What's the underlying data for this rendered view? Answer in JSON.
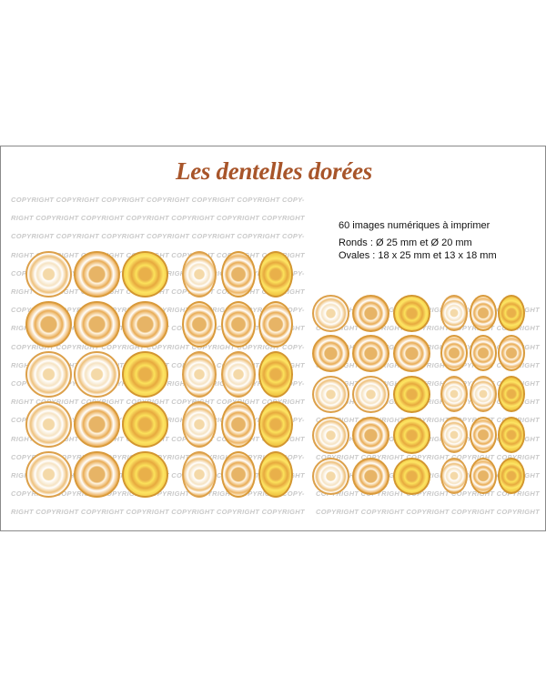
{
  "title": "Les dentelles dorées",
  "watermark": {
    "line_a": "COPYRIGHT COPYRIGHT COPYRIGHT COPYRIGHT COPYRIGHT COPYRIGHT COPY-",
    "line_b": "RIGHT COPYRIGHT COPYRIGHT COPYRIGHT COPYRIGHT COPYRIGHT COPYRIGHT",
    "line_right": "COPYRIGHT COPYRIGHT COPYRIGHT COPYRIGHT COPYRIGHT"
  },
  "info": {
    "count": "60 images numériques à imprimer",
    "rounds": "Ronds : Ø 25 mm et Ø 20 mm",
    "ovals": "Ovales : 18 x 25 mm et 13 x 18 mm"
  },
  "grid_styles": [
    [
      "c-white",
      "c-lace",
      "c-gold"
    ],
    [
      "c-lace",
      "c-lace",
      "c-lace"
    ],
    [
      "c-white",
      "c-white",
      "c-gold"
    ],
    [
      "c-white",
      "c-lace",
      "c-gold"
    ],
    [
      "c-white",
      "c-lace",
      "c-gold"
    ]
  ]
}
